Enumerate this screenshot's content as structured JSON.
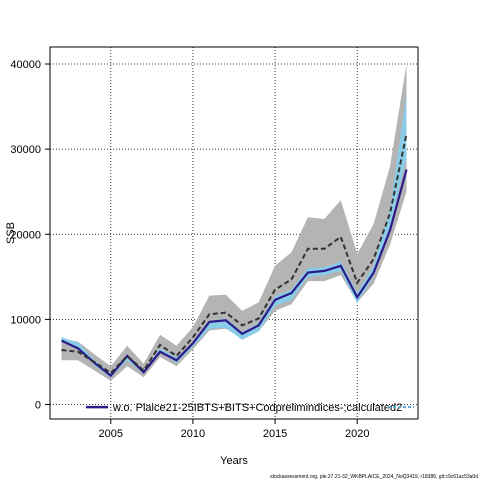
{
  "chart_data": {
    "type": "line",
    "xlabel": "Years",
    "ylabel": "SSB",
    "xlim": [
      2001.3,
      2023.7
    ],
    "ylim": [
      -1700,
      42000
    ],
    "x_ticks": [
      2005,
      2010,
      2015,
      2020
    ],
    "x_tick_labels": [
      "2005",
      "2010",
      "2015",
      "2020"
    ],
    "y_ticks": [
      0,
      10000,
      20000,
      30000,
      40000
    ],
    "y_tick_labels": [
      "0",
      "10000",
      "20000",
      "30000",
      "40000"
    ],
    "grid": true,
    "legend": {
      "placement": "bottom",
      "entries": [
        "w.o. Plaice21-25IBTS+BITS+Codprelimindices-;calculated2"
      ]
    },
    "x": [
      2002,
      2003,
      2004,
      2005,
      2006,
      2007,
      2008,
      2009,
      2010,
      2011,
      2012,
      2013,
      2014,
      2015,
      2016,
      2017,
      2018,
      2019,
      2020,
      2021,
      2022,
      2023
    ],
    "series": [
      {
        "name": "w.o. Plaice21-25IBTS+BITS+Codprelimindices-;calculated2",
        "color": "#2b1b8a",
        "values": [
          7500,
          6600,
          4900,
          3400,
          5700,
          3800,
          6200,
          5200,
          7200,
          9700,
          9900,
          8300,
          9300,
          12300,
          13100,
          15500,
          15700,
          16300,
          12600,
          15500,
          20500,
          27600
        ],
        "band_color": "#87ceeb",
        "band_lower": [
          7300,
          6800,
          4600,
          3200,
          5200,
          3600,
          6200,
          4900,
          6800,
          8900,
          9000,
          7600,
          8600,
          11600,
          12300,
          15000,
          15200,
          15700,
          11900,
          15200,
          21000,
          29000
        ],
        "band_upper": [
          7900,
          7300,
          5200,
          3700,
          5800,
          3900,
          6600,
          5500,
          7200,
          9800,
          10100,
          8500,
          9600,
          12700,
          13500,
          16000,
          16100,
          16800,
          13100,
          16300,
          23000,
          36500
        ]
      },
      {
        "name": "",
        "color": "#333333",
        "style": "dashed",
        "values": [
          6400,
          6200,
          5000,
          3700,
          5700,
          4000,
          7000,
          5700,
          7900,
          10600,
          10800,
          9300,
          10100,
          13500,
          14700,
          18300,
          18300,
          19700,
          14300,
          17100,
          22500,
          31800
        ],
        "band_color": "#b4b4b4",
        "band_lower": [
          5200,
          5200,
          4000,
          2800,
          4500,
          3200,
          5600,
          4500,
          6500,
          8700,
          8900,
          7800,
          8600,
          11000,
          11800,
          14500,
          14500,
          15200,
          12000,
          14200,
          18800,
          25000
        ],
        "band_upper": [
          7700,
          7400,
          5900,
          4500,
          6900,
          4800,
          8200,
          6900,
          9100,
          12800,
          12900,
          11000,
          12000,
          16300,
          17900,
          22000,
          21800,
          24000,
          17700,
          21200,
          28000,
          40000
        ]
      }
    ]
  },
  "footnote": "stockassessment.org, ple.27.21-32_WKBPLAICE_2024_NoQ3419, r18386, git:c9c61ac53a0d"
}
